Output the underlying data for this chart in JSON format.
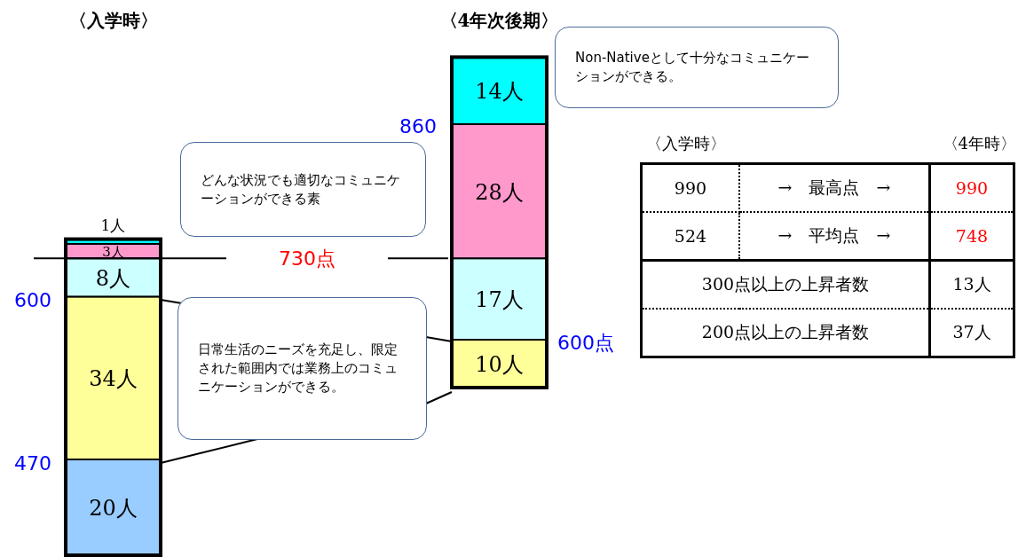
{
  "chart_data": [
    {
      "type": "bar",
      "stacked": true,
      "categories": [
        "〈入学時〉"
      ],
      "series": [
        {
          "color": "#99ccff",
          "values": [
            20
          ],
          "value_labels": [
            "20人"
          ]
        },
        {
          "color": "#ffff99",
          "values": [
            34
          ],
          "value_labels": [
            "34人"
          ]
        },
        {
          "color": "#ccffff",
          "values": [
            8
          ],
          "value_labels": [
            "8人"
          ]
        },
        {
          "color": "#ff99cc",
          "values": [
            3
          ],
          "value_labels": [
            "3人"
          ]
        },
        {
          "color": "#00ffff",
          "values": [
            1
          ],
          "value_labels": [
            "1人"
          ]
        }
      ],
      "ref_lines": [
        {
          "axis": "y",
          "value": 62,
          "label": "730点"
        }
      ],
      "annotations": [
        "600",
        "470"
      ]
    },
    {
      "type": "bar",
      "stacked": true,
      "categories": [
        "〈4年次後期〉"
      ],
      "series": [
        {
          "color": "#ffff99",
          "values": [
            10
          ],
          "value_labels": [
            "10人"
          ]
        },
        {
          "color": "#ccffff",
          "values": [
            17
          ],
          "value_labels": [
            "17人"
          ]
        },
        {
          "color": "#ff99cc",
          "values": [
            28
          ],
          "value_labels": [
            "28人"
          ]
        },
        {
          "color": "#00ffff",
          "values": [
            14
          ],
          "value_labels": [
            "14人"
          ]
        }
      ],
      "annotations": [
        "860",
        "600点"
      ]
    },
    {
      "type": "other",
      "annotations": [
        "Non-Nativeとして十分なコミュニケーションができる。",
        "どんな状況でも適切なコミュニケーションができる素",
        "日常生活のニーズを充足し、限定された範囲内では業務上のコミュニケーションができる。",
        "〈入学時〉",
        "〈4年時〉",
        "990",
        "→　最高点　→",
        "990",
        "524",
        "→　平均点　→",
        "748",
        "300点以上の上昇者数",
        "13人",
        "200点以上の上昇者数",
        "37人"
      ]
    }
  ]
}
